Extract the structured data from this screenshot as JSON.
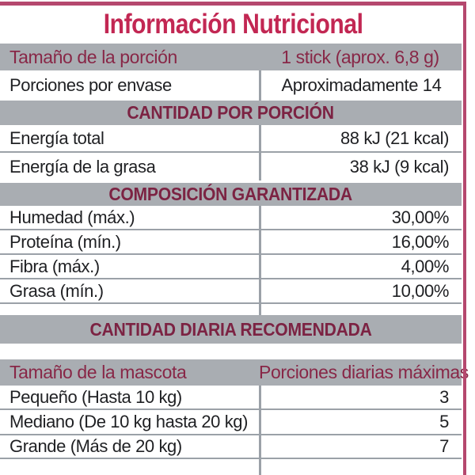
{
  "title": "Información Nutricional",
  "colors": {
    "accent_crimson": "#b5486e",
    "title_red": "#c22753",
    "banner_maroon": "#7c2343",
    "header_maroon": "#882747",
    "gray_background": "#a9adb2",
    "line_gray": "#9ba1a8",
    "text_black": "#1f2023"
  },
  "serving_header": {
    "label": "Tamaño de la porción",
    "value": "1 stick (aprox. 6,8 g)"
  },
  "servings_row": {
    "label": "Porciones por envase",
    "value": "Aproximadamente 14"
  },
  "sections": [
    {
      "banner": "CANTIDAD POR PORCIÓN",
      "rows": [
        {
          "label": "Energía total",
          "value": "88 kJ (21 kcal)"
        },
        {
          "label": "Energía de la grasa",
          "value": "38 kJ (9 kcal)"
        }
      ]
    },
    {
      "banner": "COMPOSICIÓN GARANTIZADA",
      "rows": [
        {
          "label": "Humedad (máx.)",
          "value": "30,00%"
        },
        {
          "label": "Proteína (mín.)",
          "value": "16,00%"
        },
        {
          "label": "Fibra (máx.)",
          "value": "4,00%"
        },
        {
          "label": "Grasa (mín.)",
          "value": "10,00%"
        }
      ]
    },
    {
      "banner": "CANTIDAD DIARIA RECOMENDADA",
      "table_header": {
        "label": "Tamaño de la mascota",
        "value": "Porciones diarias máximas"
      },
      "rows": [
        {
          "label": "Pequeño (Hasta 10 kg)",
          "value": "3"
        },
        {
          "label": "Mediano (De 10 kg hasta 20 kg)",
          "value": "5"
        },
        {
          "label": "Grande (Más de 20 kg)",
          "value": "7"
        }
      ]
    }
  ]
}
